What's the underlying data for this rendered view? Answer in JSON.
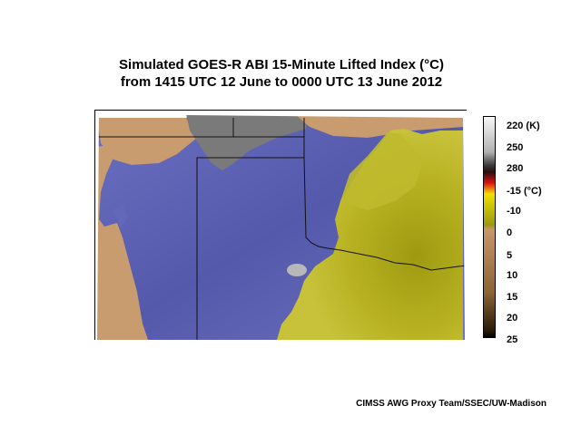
{
  "title": {
    "line1": "Simulated GOES-R ABI 15-Minute Lifted Index (°C)",
    "line2": "from 1415 UTC 12 June to 0000 UTC 13 June 2012"
  },
  "colorbar": {
    "labels": [
      "220 (K)",
      "250",
      "280",
      "-15 (°C)",
      "-10",
      "0",
      "5",
      "10",
      "15",
      "20",
      "25"
    ],
    "colors": {
      "cold": "#f4f4f4",
      "mid_gray": "#b0b0b0",
      "dark": "#2a0e0e",
      "red": "#dd1111",
      "yellow": "#f0e000",
      "olive": "#9a9a10",
      "tan": "#c8966a",
      "brown": "#5a3a14"
    }
  },
  "map_colors": {
    "stable_tan": "#c89c6e",
    "blue_purple": "#5a5fb0",
    "yellow_olive": "#b5b020",
    "cloud_gray": "#7a7a7a"
  },
  "credit": "CIMSS AWG Proxy Team/SSEC/UW-Madison"
}
